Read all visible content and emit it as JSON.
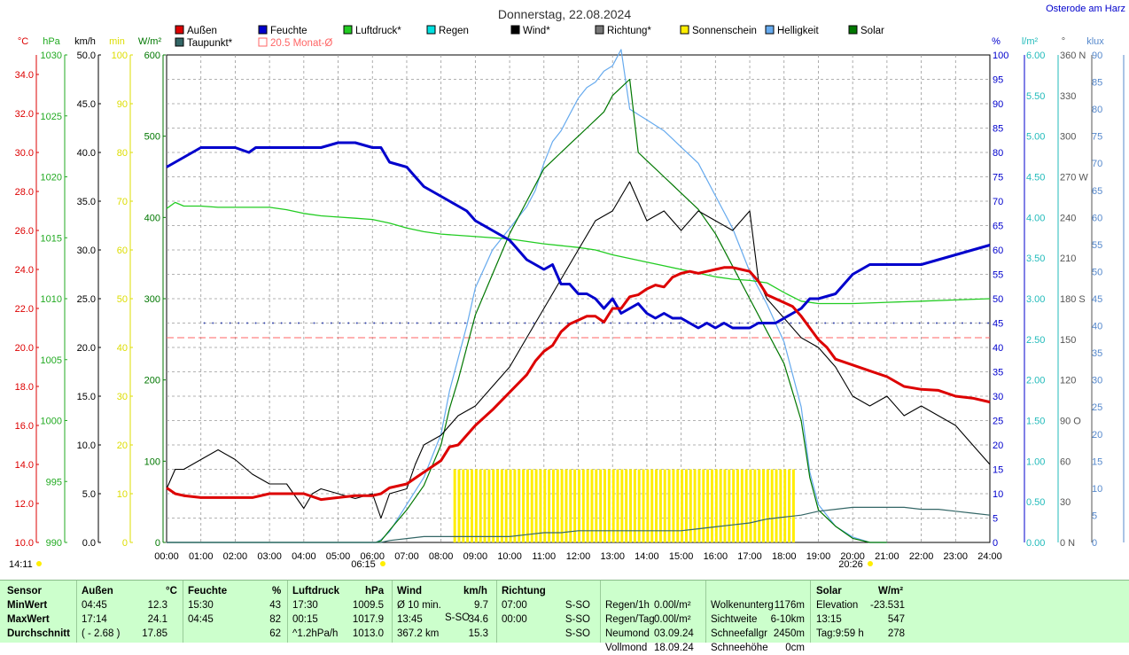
{
  "chart_data": {
    "type": "line",
    "title": "Donnerstag, 22.08.2024",
    "site": "Osterode am Harz",
    "x_ticks": [
      "00:00",
      "01:00",
      "02:00",
      "03:00",
      "04:00",
      "05:00",
      "06:00",
      "07:00",
      "08:00",
      "09:00",
      "10:00",
      "11:00",
      "12:00",
      "13:00",
      "14:00",
      "15:00",
      "16:00",
      "17:00",
      "18:00",
      "19:00",
      "20:00",
      "21:00",
      "22:00",
      "23:00",
      "24:00"
    ],
    "sunrise": "06:15",
    "sunset": "20:26",
    "current_time": "14:11",
    "legend": [
      {
        "label": "Außen",
        "color": "#dd0000"
      },
      {
        "label": "Taupunkt*",
        "color": "#336666"
      },
      {
        "label": "Feuchte",
        "color": "#0000cc"
      },
      {
        "label": "20.5 Monat-Ø",
        "color": "#ff6666"
      },
      {
        "label": "Luftdruck*",
        "color": "#22cc22"
      },
      {
        "label": "Regen",
        "color": "#00e0e0"
      },
      {
        "label": "Wind*",
        "color": "#000000"
      },
      {
        "label": "Richtung*",
        "color": "#777777"
      },
      {
        "label": "Sonnenschein",
        "color": "#ffee00"
      },
      {
        "label": "Helligkeit",
        "color": "#66aaee"
      },
      {
        "label": "Solar",
        "color": "#007700"
      }
    ],
    "axes": {
      "temp": {
        "unit": "°C",
        "color": "#dd0000",
        "ticks": [
          "34.0",
          "32.0",
          "30.0",
          "28.0",
          "26.0",
          "24.0",
          "22.0",
          "20.0",
          "18.0",
          "16.0",
          "14.0",
          "12.0",
          "10.0"
        ],
        "range": [
          10,
          35
        ]
      },
      "pressure": {
        "unit": "hPa",
        "color": "#22aa22",
        "ticks": [
          "1030",
          "1025",
          "1020",
          "1015",
          "1010",
          "1005",
          "1000",
          "995",
          "990"
        ],
        "range": [
          990,
          1030
        ]
      },
      "wind": {
        "unit": "km/h",
        "color": "#000000",
        "ticks": [
          "50.0",
          "45.0",
          "40.0",
          "35.0",
          "30.0",
          "25.0",
          "20.0",
          "15.0",
          "10.0",
          "5.0",
          "0.0"
        ],
        "range": [
          0,
          50
        ]
      },
      "sun_min": {
        "unit": "min",
        "color": "#dddd00",
        "ticks": [
          "100",
          "90",
          "80",
          "70",
          "60",
          "50",
          "40",
          "30",
          "20",
          "10",
          "0"
        ],
        "range": [
          0,
          100
        ]
      },
      "solar": {
        "unit": "W/m²",
        "color": "#007700",
        "ticks": [
          "600",
          "500",
          "400",
          "300",
          "200",
          "100",
          "0"
        ],
        "range": [
          0,
          600
        ]
      },
      "humidity": {
        "unit": "%",
        "color": "#0000cc",
        "ticks": [
          "100",
          "95",
          "90",
          "85",
          "80",
          "75",
          "70",
          "65",
          "60",
          "55",
          "50",
          "45",
          "40",
          "35",
          "30",
          "25",
          "20",
          "15",
          "10",
          "5",
          "0"
        ],
        "range": [
          0,
          100
        ]
      },
      "rain": {
        "unit": "l/m²",
        "color": "#22bbbb",
        "ticks": [
          "6.00",
          "5.50",
          "5.00",
          "4.50",
          "4.00",
          "3.50",
          "3.00",
          "2.50",
          "2.00",
          "1.50",
          "1.00",
          "0.50",
          "0.00"
        ],
        "range": [
          0,
          6
        ]
      },
      "direction": {
        "unit": "°",
        "color": "#555555",
        "ticks": [
          "360 N",
          "330",
          "300",
          "270 W",
          "240",
          "210",
          "180 S",
          "150",
          "120",
          "90 O",
          "60",
          "30",
          "0 N"
        ],
        "range": [
          0,
          360
        ]
      },
      "lux": {
        "unit": "klux",
        "color": "#5588cc",
        "ticks": [
          "90",
          "85",
          "80",
          "75",
          "70",
          "65",
          "60",
          "55",
          "50",
          "45",
          "40",
          "35",
          "30",
          "25",
          "20",
          "15",
          "10",
          "5",
          "0"
        ],
        "range": [
          0,
          90
        ]
      }
    },
    "month_avg_temp": 20.5,
    "series": [
      {
        "name": "Außen",
        "axis": "temp",
        "color": "#dd0000",
        "x": [
          0,
          0.25,
          0.5,
          1,
          1.5,
          2,
          2.5,
          3,
          3.5,
          4,
          4.5,
          5,
          5.5,
          6,
          6.25,
          6.5,
          7,
          7.25,
          7.5,
          8,
          8.25,
          8.5,
          8.75,
          9,
          9.5,
          10,
          10.5,
          10.75,
          11,
          11.25,
          11.5,
          11.75,
          12,
          12.25,
          12.5,
          12.75,
          13,
          13.25,
          13.5,
          13.75,
          14,
          14.25,
          14.5,
          14.75,
          15,
          15.25,
          15.5,
          15.75,
          16,
          16.25,
          16.5,
          16.75,
          17,
          17.25,
          17.5,
          17.75,
          18,
          18.25,
          18.5,
          18.75,
          19,
          19.25,
          19.5,
          20,
          20.5,
          21,
          21.5,
          22,
          22.5,
          23,
          23.5,
          24
        ],
        "y": [
          12.8,
          12.5,
          12.4,
          12.3,
          12.3,
          12.3,
          12.3,
          12.5,
          12.5,
          12.5,
          12.2,
          12.3,
          12.4,
          12.4,
          12.5,
          12.8,
          13.0,
          13.3,
          13.6,
          14.2,
          14.9,
          15.0,
          15.5,
          16.0,
          16.8,
          17.7,
          18.6,
          19.3,
          19.8,
          20.1,
          20.8,
          21.2,
          21.4,
          21.6,
          21.6,
          21.3,
          22.0,
          22.0,
          22.6,
          22.7,
          23.0,
          23.2,
          23.1,
          23.6,
          23.8,
          23.9,
          23.8,
          23.9,
          24.0,
          24.1,
          24.1,
          24.0,
          23.9,
          23.4,
          22.7,
          22.5,
          22.3,
          22.1,
          21.6,
          21.0,
          20.4,
          20.0,
          19.4,
          19.1,
          18.8,
          18.5,
          18.0,
          17.85,
          17.8,
          17.5,
          17.4,
          17.2
        ],
        "note": "placeholder"
      },
      {
        "name": "Feuchte",
        "axis": "humidity",
        "color": "#0000cc",
        "x": [
          0,
          0.5,
          1,
          1.5,
          2,
          2.4,
          2.6,
          3,
          3.5,
          4,
          4.5,
          5,
          5.5,
          6,
          6.25,
          6.5,
          7,
          7.25,
          7.5,
          8,
          8.5,
          8.75,
          9,
          9.5,
          10,
          10.5,
          11,
          11.25,
          11.5,
          11.75,
          12,
          12.25,
          12.5,
          12.75,
          13,
          13.25,
          13.5,
          13.75,
          14,
          14.25,
          14.5,
          14.75,
          15,
          15.25,
          15.5,
          15.75,
          16,
          16.25,
          16.5,
          16.75,
          17,
          17.25,
          17.5,
          17.75,
          18,
          18.25,
          18.5,
          18.75,
          19,
          19.5,
          20,
          20.5,
          21,
          21.5,
          22,
          22.5,
          23,
          23.5,
          24
        ],
        "y": [
          77,
          79,
          81,
          81,
          81,
          80,
          81,
          81,
          81,
          81,
          81,
          82,
          82,
          81,
          81,
          78,
          77,
          75,
          73,
          71,
          69,
          68,
          66,
          64,
          62,
          58,
          56,
          57,
          53,
          53,
          51,
          51,
          50,
          48,
          50,
          47,
          48,
          49,
          47,
          46,
          47,
          46,
          46,
          45,
          44,
          45,
          44,
          45,
          44,
          44,
          44,
          45,
          45,
          45,
          46,
          47,
          48,
          50,
          50,
          51,
          55,
          57,
          57,
          57,
          57,
          58,
          59,
          60,
          61
        ],
        "note": "placeholder"
      },
      {
        "name": "Luftdruck*",
        "axis": "pressure",
        "color": "#22cc22",
        "x": [
          0,
          0.25,
          0.5,
          1,
          1.5,
          2,
          2.5,
          3,
          3.5,
          4,
          4.5,
          5,
          5.5,
          6,
          6.5,
          7,
          7.5,
          8,
          9,
          10,
          11,
          12,
          12.5,
          13,
          13.5,
          14,
          14.5,
          15,
          15.5,
          16,
          16.5,
          17,
          17.5,
          18,
          18.5,
          19,
          19.5,
          20,
          21,
          22,
          23,
          24
        ],
        "y": [
          1017.4,
          1017.9,
          1017.6,
          1017.6,
          1017.5,
          1017.5,
          1017.5,
          1017.5,
          1017.3,
          1017.0,
          1016.8,
          1016.7,
          1016.6,
          1016.5,
          1016.2,
          1015.8,
          1015.5,
          1015.3,
          1015.1,
          1014.9,
          1014.5,
          1014.2,
          1014.0,
          1013.6,
          1013.3,
          1013.0,
          1012.7,
          1012.4,
          1012.1,
          1011.8,
          1011.6,
          1011.5,
          1011.3,
          1010.5,
          1009.8,
          1009.6,
          1009.6,
          1009.6,
          1009.7,
          1009.8,
          1009.9,
          1010.0
        ]
      },
      {
        "name": "Wind*",
        "axis": "wind",
        "color": "#000000",
        "x": [
          0,
          0.25,
          0.5,
          1,
          1.5,
          2,
          2.5,
          3,
          3.5,
          4,
          4.25,
          4.5,
          5,
          5.5,
          6,
          6.25,
          6.5,
          7,
          7.25,
          7.5,
          8,
          8.5,
          9,
          9.5,
          10,
          10.5,
          11,
          11.5,
          12,
          12.5,
          13,
          13.5,
          14,
          14.5,
          15,
          15.5,
          16,
          16.5,
          17,
          17.25,
          17.5,
          18,
          18.5,
          19,
          19.5,
          20,
          20.5,
          21,
          21.5,
          22,
          22.5,
          23,
          23.5,
          24
        ],
        "y": [
          5.5,
          7.5,
          7.5,
          8.5,
          9.5,
          8.5,
          7,
          6,
          6,
          3.5,
          5,
          5.5,
          5,
          4.5,
          5,
          2.5,
          5,
          5.5,
          8,
          10,
          11,
          13,
          14,
          16,
          18,
          21,
          24,
          27,
          30,
          33,
          34,
          37,
          33,
          34,
          32,
          34,
          33,
          32,
          34,
          27,
          25,
          23,
          21,
          20,
          18,
          15,
          14,
          15,
          13,
          14,
          13,
          12,
          10,
          8
        ],
        "note": "placeholder"
      },
      {
        "name": "Solar",
        "axis": "solar",
        "color": "#007700",
        "x": [
          0,
          6.1,
          6.25,
          6.5,
          7,
          7.5,
          8,
          8.25,
          8.5,
          8.75,
          9,
          9.5,
          10,
          10.5,
          10.75,
          11,
          11.25,
          11.5,
          11.75,
          12,
          12.25,
          12.5,
          12.75,
          13,
          13.25,
          13.5,
          13.75,
          14,
          14.5,
          15,
          15.5,
          16,
          16.5,
          17,
          17.5,
          18,
          18.5,
          18.75,
          19,
          19.5,
          20,
          20.5,
          21
        ],
        "y": [
          0,
          0,
          2,
          15,
          40,
          70,
          120,
          165,
          200,
          240,
          280,
          330,
          380,
          420,
          440,
          460,
          470,
          480,
          490,
          500,
          510,
          520,
          530,
          550,
          560,
          570,
          480,
          470,
          450,
          430,
          410,
          380,
          340,
          300,
          260,
          220,
          150,
          80,
          40,
          20,
          5,
          0,
          0
        ],
        "note": "placeholder"
      },
      {
        "name": "Helligkeit",
        "axis": "lux",
        "color": "#66aaee",
        "x": [
          0,
          6.1,
          6.25,
          6.5,
          7,
          7.5,
          8,
          8.25,
          8.5,
          8.75,
          9,
          9.5,
          10,
          10.5,
          10.75,
          11,
          11.25,
          11.5,
          11.75,
          12,
          12.25,
          12.5,
          12.75,
          13,
          13.25,
          13.5,
          13.75,
          14,
          14.5,
          15,
          15.5,
          16,
          16.5,
          17,
          17.5,
          18,
          18.5,
          18.75,
          19,
          19.5,
          20,
          20.5,
          21
        ],
        "y": [
          0,
          0,
          0.5,
          2,
          7,
          12,
          20,
          28,
          34,
          40,
          47,
          54,
          58,
          62,
          65,
          70,
          74,
          76,
          79,
          82,
          84,
          85,
          87,
          88,
          91,
          80,
          79,
          78,
          76,
          73,
          70,
          64,
          58,
          50,
          44,
          37,
          25,
          13,
          7,
          3,
          1,
          0,
          0
        ],
        "note": "placeholder"
      },
      {
        "name": "Taupunkt*",
        "axis": "temp",
        "color": "#336666",
        "x": [
          0,
          6,
          6.25,
          6.5,
          7,
          7.5,
          8,
          8.25,
          8.5,
          8.75,
          9,
          9.5,
          10,
          10.5,
          11,
          11.5,
          12,
          12.5,
          13,
          13.5,
          14,
          14.5,
          15,
          15.5,
          16,
          16.5,
          17,
          17.5,
          18,
          18.5,
          19,
          19.5,
          20,
          20.5,
          21,
          21.5,
          22,
          22.5,
          23,
          23.5,
          24
        ],
        "y": [
          10,
          10,
          10,
          10.1,
          10.2,
          10.3,
          10.3,
          10.3,
          10.3,
          10.3,
          10.3,
          10.3,
          10.3,
          10.4,
          10.5,
          10.5,
          10.6,
          10.6,
          10.6,
          10.6,
          10.6,
          10.6,
          10.6,
          10.7,
          10.8,
          10.9,
          11.0,
          11.2,
          11.3,
          11.4,
          11.6,
          11.7,
          11.8,
          11.8,
          11.8,
          11.8,
          11.7,
          11.7,
          11.6,
          11.5,
          11.4
        ]
      }
    ],
    "richtung_points": [
      {
        "x_start": 1.1,
        "x_end": 4.0,
        "y": 45
      },
      {
        "x_start": 4.3,
        "x_end": 7.5,
        "y": 45
      },
      {
        "x_start": 7.7,
        "x_end": 24,
        "y": 45
      }
    ],
    "sunshine_bars": {
      "x_start": 8.4,
      "x_end": 18.3,
      "value": 15
    },
    "stats": {
      "headers": {
        "sensor": "Sensor",
        "aussen": "Außen",
        "aussen_unit": "°C",
        "feuchte": "Feuchte",
        "feuchte_unit": "%",
        "luftdruck": "Luftdruck",
        "luftdruck_unit": "hPa",
        "wind": "Wind",
        "wind_unit": "km/h",
        "richtung": "Richtung",
        "solar": "Solar",
        "solar_unit": "W/m²"
      },
      "rows": [
        {
          "label": "MinWert",
          "aussen_t": "04:45",
          "aussen_v": "12.3",
          "feuchte_t": "15:30",
          "feuchte_v": "43",
          "druck_t": "17:30",
          "druck_v": "1009.5",
          "wind_t": "Ø 10 min.",
          "wind_v": "9.7",
          "rich_t": "07:00",
          "rich_v": "S-SO",
          "misc1": "Regen/1h",
          "misc1_v": "0.00l/m²",
          "misc2": "Wolkenunterg",
          "misc2_v": "1176m",
          "solar_t": "Elevation",
          "solar_v": "-23.531"
        },
        {
          "label": "MaxWert",
          "aussen_t": "17:14",
          "aussen_v": "24.1",
          "feuchte_t": "04:45",
          "feuchte_v": "82",
          "druck_t": "00:15",
          "druck_v": "1017.9",
          "wind_t": "13:45",
          "wind_x": "S-SO",
          "wind_v": "34.6",
          "rich_t": "00:00",
          "rich_v": "S-SO",
          "misc1": "Regen/Tag",
          "misc1_v": "0.00l/m²",
          "misc2": "Sichtweite",
          "misc2_v": "6-10km",
          "solar_t": "13:15",
          "solar_v": "547"
        },
        {
          "label": "Durchschnitt",
          "aussen_t": "( - 2.68 )",
          "aussen_v": "17.85",
          "feuchte_t": "",
          "feuchte_v": "62",
          "druck_t": "^1.2hPa/h",
          "druck_v": "1013.0",
          "wind_t": "367.2 km",
          "wind_v": "15.3",
          "rich_t": "",
          "rich_v": "S-SO",
          "misc1": "Neumond",
          "misc1_v": "03.09.24",
          "misc2": "Schneefallgr",
          "misc2_v": "2450m",
          "solar_t": "Tag:9:59 h",
          "solar_v": "278"
        },
        {
          "label": "",
          "aussen_t": "",
          "aussen_v": "",
          "feuchte_t": "",
          "feuchte_v": "",
          "druck_t": "",
          "druck_v": "",
          "wind_t": "",
          "wind_v": "",
          "rich_t": "",
          "rich_v": "",
          "misc1": "Vollmond",
          "misc1_v": "18.09.24",
          "misc2": "Schneehöhe",
          "misc2_v": "0cm",
          "solar_t": "",
          "solar_v": ""
        }
      ]
    }
  }
}
